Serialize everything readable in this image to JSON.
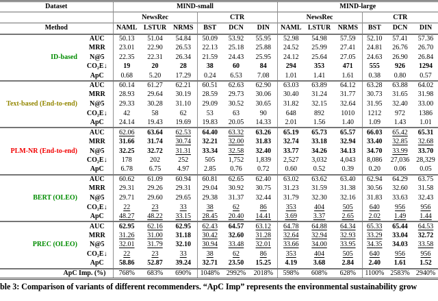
{
  "table": {
    "header": {
      "dataset_label": "Dataset",
      "method_label": "Method",
      "datasets": [
        "MIND-small",
        "MIND-large"
      ],
      "model_groups": [
        "NewsRec",
        "CTR",
        "NewsRec",
        "CTR"
      ],
      "columns": [
        "NAML",
        "LSTUR",
        "NRMS",
        "BST",
        "DCN",
        "DIN",
        "NAML",
        "LSTUR",
        "NRMS",
        "BST",
        "DCN",
        "DIN"
      ]
    },
    "groups": [
      {
        "label": "ID-based",
        "color": "#008c00",
        "rows": [
          {
            "metric": "AUC",
            "values": [
              "50.13",
              "51.04",
              "54.84",
              "50.09",
              "53.92",
              "55.95",
              "52.98",
              "54.98",
              "57.59",
              "52.10",
              "57.41",
              "57.36"
            ],
            "styles": "pppppppppppp"
          },
          {
            "metric": "MRR",
            "values": [
              "23.01",
              "22.90",
              "26.53",
              "22.13",
              "25.18",
              "25.88",
              "24.52",
              "25.99",
              "27.41",
              "24.81",
              "26.76",
              "26.70"
            ],
            "styles": "pppppppppppp"
          },
          {
            "metric": "N@5",
            "values": [
              "22.35",
              "22.31",
              "26.34",
              "21.59",
              "24.43",
              "25.95",
              "24.12",
              "25.64",
              "27.05",
              "24.63",
              "26.90",
              "26.84"
            ],
            "styles": "pppppppppppp"
          },
          {
            "metric": "CO₂E↓",
            "values": [
              "19",
              "20",
              "28",
              "38",
              "60",
              "84",
              "294",
              "353",
              "471",
              "555",
              "926",
              "1294"
            ],
            "styles": "bbbbbbbbbbbb"
          },
          {
            "metric": "ApC",
            "values": [
              "0.68",
              "5.20",
              "17.29",
              "0.24",
              "6.53",
              "7.08",
              "1.01",
              "1.41",
              "1.61",
              "0.38",
              "0.80",
              "0.57"
            ],
            "styles": "pppppppppppp"
          }
        ]
      },
      {
        "label": "Text-based (End-to-end)",
        "color": "#938700",
        "rows": [
          {
            "metric": "AUC",
            "values": [
              "60.14",
              "61.27",
              "62.21",
              "60.51",
              "62.63",
              "62.90",
              "63.03",
              "63.89",
              "64.12",
              "63.28",
              "63.88",
              "64.02"
            ],
            "styles": "pppppppppppp"
          },
          {
            "metric": "MRR",
            "values": [
              "28.93",
              "29.64",
              "30.19",
              "28.59",
              "29.73",
              "30.06",
              "30.40",
              "31.24",
              "31.77",
              "30.73",
              "31.65",
              "31.98"
            ],
            "styles": "pppppppppppp"
          },
          {
            "metric": "N@5",
            "values": [
              "29.33",
              "30.28",
              "31.10",
              "29.09",
              "30.52",
              "30.65",
              "31.82",
              "32.15",
              "32.64",
              "31.95",
              "32.40",
              "33.00"
            ],
            "styles": "pppppppppppp"
          },
          {
            "metric": "CO₂E↓",
            "values": [
              "42",
              "58",
              "62",
              "53",
              "63",
              "90",
              "648",
              "892",
              "1010",
              "1212",
              "972",
              "1386"
            ],
            "styles": "pppppppppppp"
          },
          {
            "metric": "ApC",
            "values": [
              "24.14",
              "19.43",
              "19.69",
              "19.83",
              "20.05",
              "14.33",
              "2.01",
              "1.56",
              "1.40",
              "1.09",
              "1.43",
              "1.01"
            ],
            "styles": "pppppppppppp"
          }
        ]
      },
      {
        "label": "PLM-NR (End-to-end)",
        "color": "#f20000",
        "rows": [
          {
            "metric": "AUC",
            "values": [
              "62.06",
              "63.64",
              "62.53",
              "64.40",
              "63.32",
              "63.26",
              "65.19",
              "65.73",
              "65.57",
              "66.03",
              "65.42",
              "65.31"
            ],
            "styles": "ubububbbbbub"
          },
          {
            "metric": "MRR",
            "values": [
              "31.66",
              "31.74",
              "30.74",
              "32.21",
              "32.00",
              "31.83",
              "32.74",
              "33.18",
              "32.94",
              "33.40",
              "32.85",
              "32.68"
            ],
            "styles": "bbububbbbbuu"
          },
          {
            "metric": "N@5",
            "values": [
              "32.25",
              "32.72",
              "31.31",
              "33.34",
              "32.58",
              "32.40",
              "33.77",
              "34.26",
              "34.13",
              "34.70",
              "33.99",
              "33.70"
            ],
            "styles": "bbububbbbbub"
          },
          {
            "metric": "CO₂E↓",
            "values": [
              "178",
              "202",
              "252",
              "505",
              "1,752",
              "1,839",
              "2,527",
              "3,032",
              "4,043",
              "8,086",
              "27,036",
              "28,329"
            ],
            "styles": "pppppppppppp"
          },
          {
            "metric": "ApC",
            "values": [
              "6.78",
              "6.75",
              "4.97",
              "2.85",
              "0.76",
              "0.72",
              "0.60",
              "0.52",
              "0.39",
              "0.20",
              "0.06",
              "0.05"
            ],
            "styles": "pppppppppppp"
          }
        ]
      },
      {
        "label": "BERT (OLEO)",
        "color": "#008c00",
        "rows": [
          {
            "metric": "AUC",
            "values": [
              "60.62",
              "61.09",
              "60.94",
              "60.81",
              "62.65",
              "62.40",
              "63.02",
              "63.62",
              "63.40",
              "62.94",
              "64.29",
              "63.75"
            ],
            "styles": "pppppppppppp"
          },
          {
            "metric": "MRR",
            "values": [
              "29.31",
              "29.26",
              "29.31",
              "29.04",
              "30.92",
              "30.75",
              "31.23",
              "31.59",
              "31.38",
              "30.56",
              "32.60",
              "31.58"
            ],
            "styles": "pppppppppppp"
          },
          {
            "metric": "N@5",
            "values": [
              "29.71",
              "29.60",
              "29.65",
              "29.38",
              "31.37",
              "32.44",
              "31.79",
              "32.30",
              "32.16",
              "31.83",
              "33.63",
              "32.43"
            ],
            "styles": "pppppppppppp"
          },
          {
            "metric": "CO₂E↓",
            "values": [
              "22",
              "23",
              "33",
              "38",
              "62",
              "86",
              "353",
              "404",
              "505",
              "640",
              "956",
              "956"
            ],
            "styles": "uuuuuuuuuuuu"
          },
          {
            "metric": "ApC",
            "values": [
              "48.27",
              "48.22",
              "33.15",
              "28.45",
              "20.40",
              "14.41",
              "3.69",
              "3.37",
              "2.65",
              "2.02",
              "1.49",
              "1.44"
            ],
            "styles": "uuuuuuuuuuuu"
          }
        ]
      },
      {
        "label": "PREC (OLEO)",
        "color": "#008c00",
        "rows": [
          {
            "metric": "AUC",
            "values": [
              "62.95",
              "62.16",
              "62.95",
              "62.43",
              "64.57",
              "63.12",
              "64.78",
              "64.88",
              "64.34",
              "65.33",
              "65.44",
              "64.53"
            ],
            "styles": "bububuuuuubu"
          },
          {
            "metric": "MRR",
            "values": [
              "31.26",
              "31.00",
              "31.18",
              "30.42",
              "32.60",
              "31.28",
              "32.64",
              "32.94",
              "32.93",
              "33.29",
              "33.04",
              "32.72"
            ],
            "styles": "uububuuuuubb"
          },
          {
            "metric": "N@5",
            "values": [
              "32.01",
              "31.79",
              "32.10",
              "30.94",
              "33.48",
              "32.01",
              "33.66",
              "34.00",
              "33.95",
              "34.35",
              "34.03",
              "33.58"
            ],
            "styles": "uubuuuuuuubu"
          },
          {
            "metric": "CO₂E↓",
            "values": [
              "22",
              "23",
              "33",
              "38",
              "62",
              "86",
              "353",
              "404",
              "505",
              "640",
              "956",
              "956"
            ],
            "styles": "uuuuuuuuuuuu"
          },
          {
            "metric": "ApC",
            "values": [
              "58.86",
              "52.87",
              "39.24",
              "32.71",
              "23.50",
              "15.25",
              "4.19",
              "3.68",
              "2.84",
              "2.40",
              "1.61",
              "1.52"
            ],
            "styles": "bbbbbbbbbbbb"
          }
        ]
      }
    ],
    "footer_row": {
      "label": "ApC Imp. (%)",
      "values": [
        "768%",
        "683%",
        "690%",
        "1048%",
        "2992%",
        "2018%",
        "598%",
        "608%",
        "628%",
        "1100%",
        "2583%",
        "2940%"
      ]
    }
  },
  "caption": "ble 3: Comparison of variants of different recommenders. “ApC Imp” represents the environmental sustainability grow"
}
